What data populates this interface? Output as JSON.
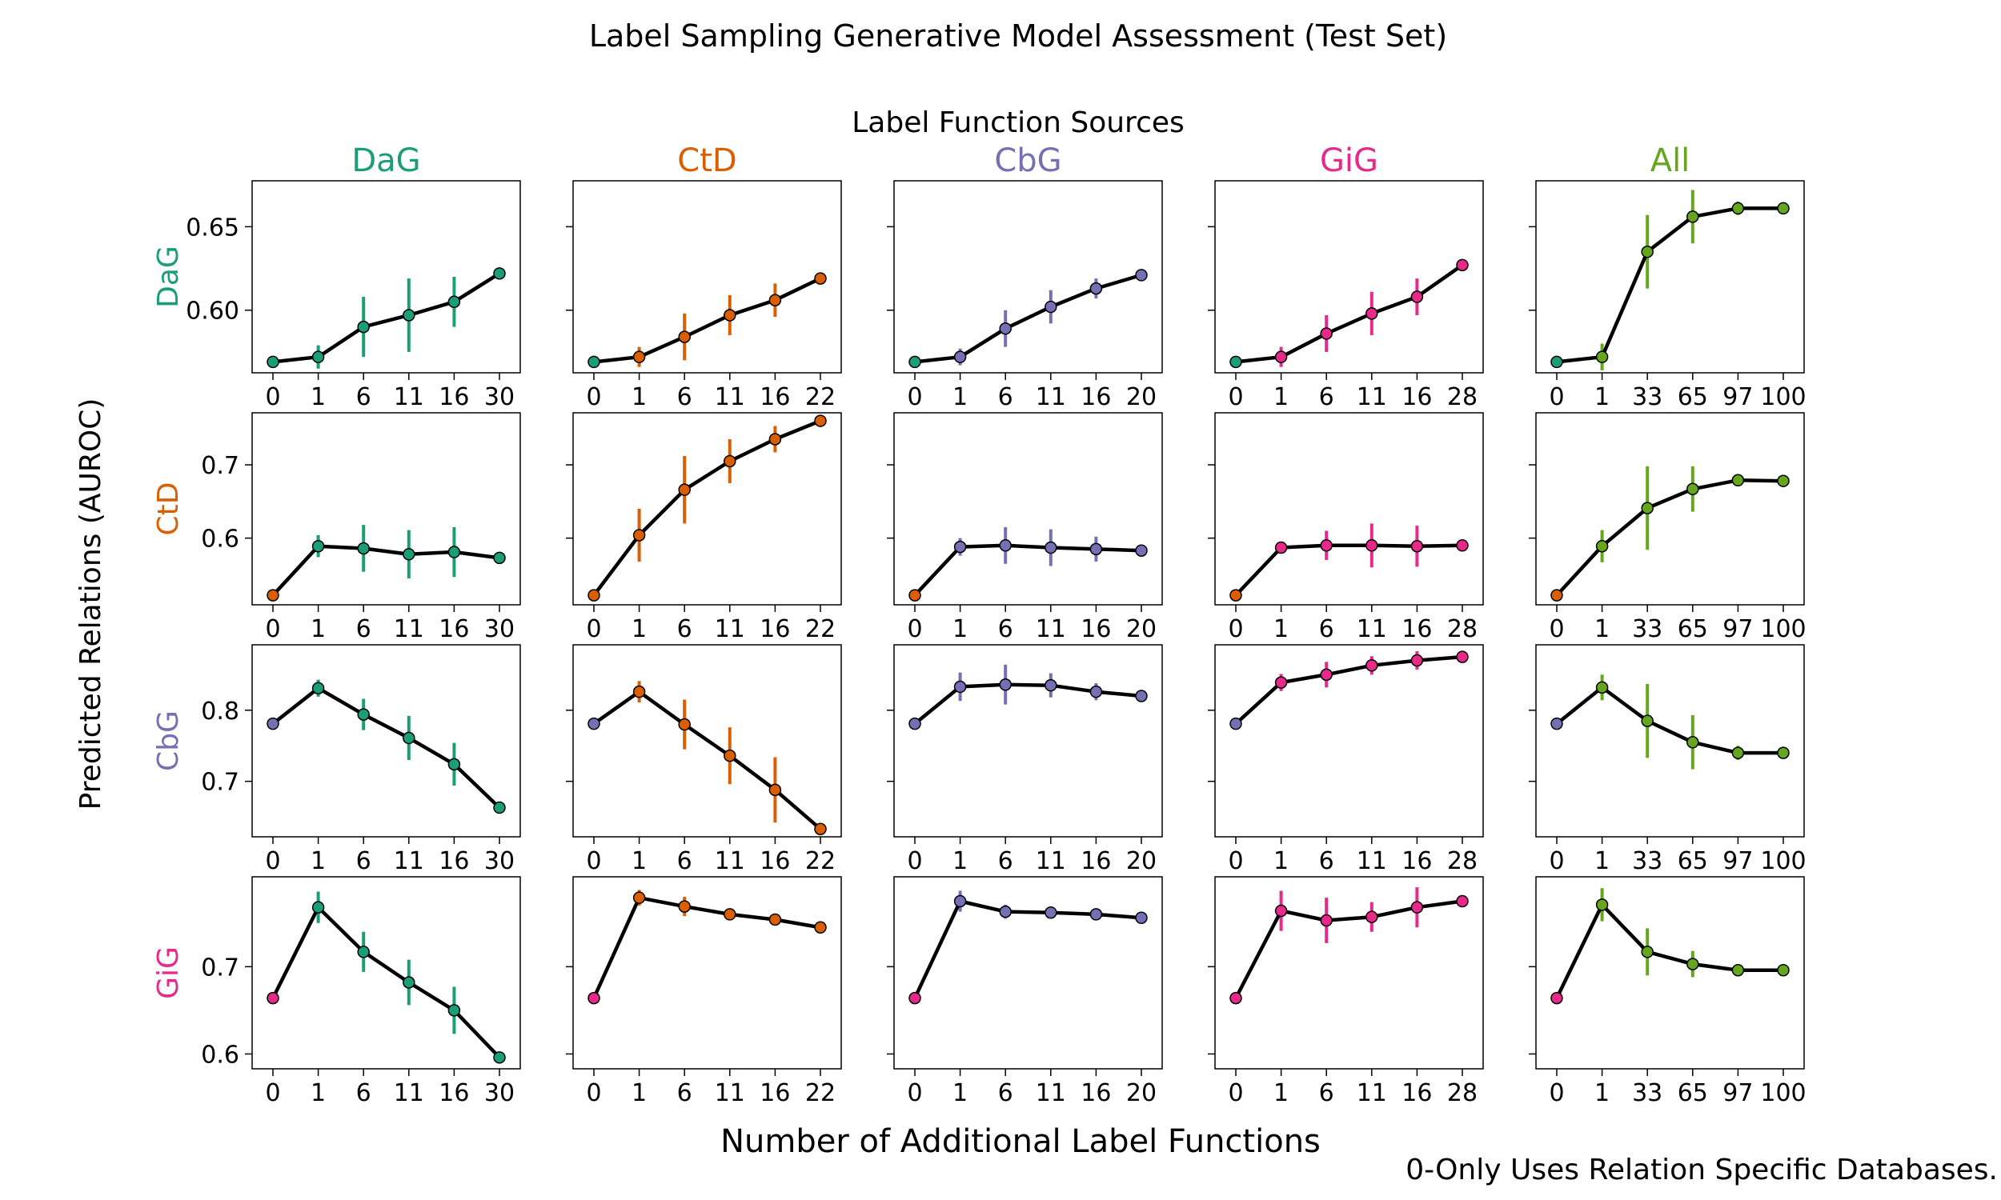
{
  "title": "Label Sampling Generative Model Assessment (Test Set)",
  "column_header": "Label Function Sources",
  "ylabel": "Predicted Relations (AUROC)",
  "xlabel": "Number of Additional Label Functions",
  "footnote": "0-Only Uses Relation Specific Databases.",
  "colors": {
    "DaG": "#1b9e77",
    "CtD": "#d95f02",
    "CbG": "#7570b3",
    "GiG": "#e7298a",
    "All": "#66a61e",
    "line": "#000000"
  },
  "chart_data": {
    "type": "line",
    "columns": [
      {
        "name": "DaG",
        "x": [
          "0",
          "1",
          "6",
          "11",
          "16",
          "30"
        ]
      },
      {
        "name": "CtD",
        "x": [
          "0",
          "1",
          "6",
          "11",
          "16",
          "22"
        ]
      },
      {
        "name": "CbG",
        "x": [
          "0",
          "1",
          "6",
          "11",
          "16",
          "20"
        ]
      },
      {
        "name": "GiG",
        "x": [
          "0",
          "1",
          "6",
          "11",
          "16",
          "28"
        ]
      },
      {
        "name": "All",
        "x": [
          "0",
          "1",
          "33",
          "65",
          "97",
          "100"
        ]
      }
    ],
    "rows": [
      {
        "name": "DaG",
        "ylim": [
          0.5625,
          0.6775
        ],
        "yticks": [
          0.6,
          0.65
        ],
        "yticklabels": [
          "0.60",
          "0.65"
        ],
        "series": [
          {
            "values": [
              0.569,
              0.572,
              0.59,
              0.597,
              0.605,
              0.622
            ],
            "err": [
              0,
              0.007,
              0.018,
              0.022,
              0.015,
              0.002
            ]
          },
          {
            "values": [
              0.569,
              0.572,
              0.584,
              0.597,
              0.606,
              0.619
            ],
            "err": [
              0,
              0.006,
              0.014,
              0.012,
              0.01,
              0.002
            ]
          },
          {
            "values": [
              0.569,
              0.572,
              0.589,
              0.602,
              0.613,
              0.621
            ],
            "err": [
              0,
              0.005,
              0.011,
              0.01,
              0.006,
              0.002
            ]
          },
          {
            "values": [
              0.569,
              0.572,
              0.586,
              0.598,
              0.608,
              0.627
            ],
            "err": [
              0,
              0.006,
              0.011,
              0.013,
              0.011,
              0.002
            ]
          },
          {
            "values": [
              0.569,
              0.572,
              0.635,
              0.656,
              0.661,
              0.661
            ],
            "err": [
              0,
              0.008,
              0.022,
              0.016,
              0.004,
              0.002
            ]
          }
        ]
      },
      {
        "name": "CtD",
        "ylim": [
          0.509,
          0.771
        ],
        "yticks": [
          0.6,
          0.7
        ],
        "yticklabels": [
          "0.6",
          "0.7"
        ],
        "series": [
          {
            "values": [
              0.522,
              0.589,
              0.586,
              0.578,
              0.581,
              0.573
            ],
            "err": [
              0,
              0.015,
              0.032,
              0.033,
              0.034,
              0.003
            ]
          },
          {
            "values": [
              0.522,
              0.604,
              0.666,
              0.705,
              0.735,
              0.76
            ],
            "err": [
              0,
              0.036,
              0.046,
              0.03,
              0.018,
              0.004
            ]
          },
          {
            "values": [
              0.522,
              0.588,
              0.59,
              0.587,
              0.585,
              0.583
            ],
            "err": [
              0,
              0.012,
              0.025,
              0.025,
              0.017,
              0.003
            ]
          },
          {
            "values": [
              0.522,
              0.587,
              0.59,
              0.59,
              0.589,
              0.59
            ],
            "err": [
              0,
              0.003,
              0.02,
              0.03,
              0.028,
              0.003
            ]
          },
          {
            "values": [
              0.522,
              0.589,
              0.641,
              0.667,
              0.679,
              0.678
            ],
            "err": [
              0,
              0.022,
              0.057,
              0.031,
              0.008,
              0.003
            ]
          }
        ]
      },
      {
        "name": "CbG",
        "ylim": [
          0.622,
          0.892
        ],
        "yticks": [
          0.7,
          0.8
        ],
        "yticklabels": [
          "0.7",
          "0.8"
        ],
        "series": [
          {
            "values": [
              0.781,
              0.831,
              0.794,
              0.761,
              0.724,
              0.663
            ],
            "err": [
              0,
              0.012,
              0.022,
              0.031,
              0.03,
              0.003
            ]
          },
          {
            "values": [
              0.781,
              0.826,
              0.78,
              0.736,
              0.688,
              0.633
            ],
            "err": [
              0,
              0.015,
              0.035,
              0.04,
              0.046,
              0.003
            ]
          },
          {
            "values": [
              0.781,
              0.833,
              0.836,
              0.835,
              0.826,
              0.82
            ],
            "err": [
              0,
              0.02,
              0.028,
              0.017,
              0.012,
              0.003
            ]
          },
          {
            "values": [
              0.781,
              0.839,
              0.85,
              0.863,
              0.87,
              0.875
            ],
            "err": [
              0,
              0.012,
              0.018,
              0.013,
              0.013,
              0.003
            ]
          },
          {
            "values": [
              0.781,
              0.832,
              0.785,
              0.755,
              0.74,
              0.74
            ],
            "err": [
              0,
              0.018,
              0.052,
              0.038,
              0.01,
              0.003
            ]
          }
        ]
      },
      {
        "name": "GiG",
        "ylim": [
          0.583,
          0.803
        ],
        "yticks": [
          0.6,
          0.7
        ],
        "yticklabels": [
          "0.6",
          "0.7"
        ],
        "series": [
          {
            "values": [
              0.664,
              0.768,
              0.717,
              0.682,
              0.65,
              0.596
            ],
            "err": [
              0,
              0.018,
              0.023,
              0.026,
              0.027,
              0.002
            ]
          },
          {
            "values": [
              0.664,
              0.779,
              0.769,
              0.76,
              0.754,
              0.745
            ],
            "err": [
              0,
              0.009,
              0.011,
              0.006,
              0.004,
              0.002
            ]
          },
          {
            "values": [
              0.664,
              0.775,
              0.763,
              0.762,
              0.76,
              0.756
            ],
            "err": [
              0,
              0.012,
              0.008,
              0.006,
              0.006,
              0.002
            ]
          },
          {
            "values": [
              0.664,
              0.764,
              0.753,
              0.757,
              0.768,
              0.775
            ],
            "err": [
              0,
              0.023,
              0.026,
              0.017,
              0.023,
              0.002
            ]
          },
          {
            "values": [
              0.664,
              0.771,
              0.717,
              0.703,
              0.696,
              0.696
            ],
            "err": [
              0,
              0.019,
              0.027,
              0.015,
              0.004,
              0.002
            ]
          }
        ]
      }
    ]
  }
}
